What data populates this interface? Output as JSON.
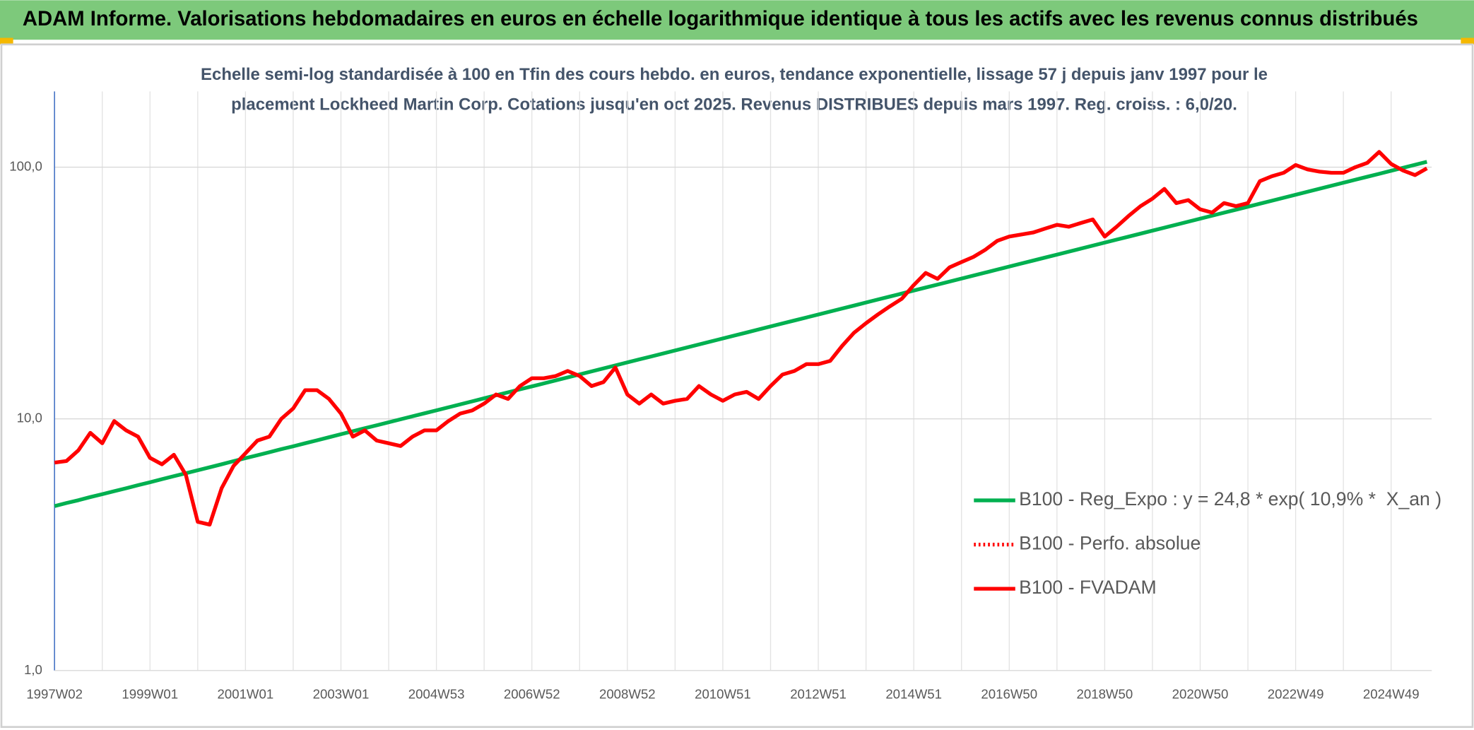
{
  "chart_data": {
    "type": "line",
    "title": "ADAM Informe. Valorisations hebdomadaires en euros en échelle logarithmique identique à tous les actifs avec les revenus connus distribués",
    "subtitle": [
      "Echelle semi-log standardisée à 100 en Tfin des cours hebdo. en euros, tendance exponentielle, lissage 57 j depuis janv 1997 pour le",
      "placement Lockheed Martin Corp. Cotations jusqu'en oct 2025. Revenus DISTRIBUES depuis mars 1997. Reg. croiss. : 6,0/20."
    ],
    "log_scale": true,
    "grid": true,
    "legend_position": "lower right",
    "ylim": [
      1,
      200
    ],
    "yticks": [
      {
        "value": 1,
        "label": "1,0"
      },
      {
        "value": 10,
        "label": "10,0"
      },
      {
        "value": 100,
        "label": "100,0"
      }
    ],
    "categories": [
      "1997W02",
      null,
      null,
      null,
      null,
      null,
      null,
      null,
      "1999W01",
      null,
      null,
      null,
      null,
      null,
      null,
      null,
      "2001W01",
      null,
      null,
      null,
      null,
      null,
      null,
      null,
      "2003W01",
      null,
      null,
      null,
      null,
      null,
      null,
      null,
      "2004W53",
      null,
      null,
      null,
      null,
      null,
      null,
      null,
      "2006W52",
      null,
      null,
      null,
      null,
      null,
      null,
      null,
      "2008W52",
      null,
      null,
      null,
      null,
      null,
      null,
      null,
      "2010W51",
      null,
      null,
      null,
      null,
      null,
      null,
      null,
      "2012W51",
      null,
      null,
      null,
      null,
      null,
      null,
      null,
      "2014W51",
      null,
      null,
      null,
      null,
      null,
      null,
      null,
      "2016W50",
      null,
      null,
      null,
      null,
      null,
      null,
      null,
      "2018W50",
      null,
      null,
      null,
      null,
      null,
      null,
      null,
      "2020W50",
      null,
      null,
      null,
      null,
      null,
      null,
      null,
      "2022W49",
      null,
      null,
      null,
      null,
      null,
      null,
      null,
      "2024W49",
      null,
      null,
      null
    ],
    "series": [
      {
        "name": "B100 - Reg_Expo : y = 24,8 * exp( 10,9% *  X_an )",
        "color": "#00b050",
        "dash": "solid",
        "values": [
          4.5,
          4.63,
          4.75,
          4.89,
          5.02,
          5.16,
          5.3,
          5.45,
          5.6,
          5.76,
          5.92,
          6.08,
          6.25,
          6.42,
          6.6,
          6.79,
          6.98,
          7.17,
          7.37,
          7.58,
          7.78,
          8.0,
          8.22,
          8.45,
          8.69,
          8.93,
          9.18,
          9.43,
          9.69,
          9.96,
          10.24,
          10.52,
          10.81,
          11.11,
          11.42,
          11.74,
          12.07,
          12.41,
          12.75,
          13.1,
          13.46,
          13.83,
          14.22,
          14.61,
          15.02,
          15.44,
          15.87,
          16.31,
          16.76,
          17.23,
          17.7,
          18.19,
          18.7,
          19.22,
          19.75,
          20.3,
          20.87,
          21.45,
          22.04,
          22.66,
          23.29,
          23.94,
          24.6,
          25.28,
          25.98,
          26.7,
          27.44,
          28.2,
          28.99,
          29.8,
          30.62,
          31.47,
          32.35,
          33.25,
          34.17,
          35.12,
          36.1,
          37.1,
          38.13,
          39.19,
          40.28,
          41.4,
          42.55,
          43.73,
          44.94,
          46.19,
          47.47,
          48.79,
          50.15,
          51.54,
          52.97,
          54.44,
          55.95,
          57.51,
          59.1,
          60.74,
          62.43,
          64.17,
          65.95,
          67.77,
          69.66,
          71.6,
          73.58,
          75.62,
          77.73,
          79.89,
          82.11,
          84.38,
          86.73,
          89.14,
          91.61,
          94.15,
          96.78,
          99.47,
          102.23,
          105.07
        ]
      },
      {
        "name": "B100 - Perfo. absolue",
        "color": "#ff0000",
        "dash": "dotted"
      },
      {
        "name": "B100 - FVADAM",
        "color": "#ff0000",
        "dash": "solid",
        "values": [
          6.7,
          6.8,
          7.5,
          8.8,
          8.0,
          9.8,
          9.0,
          8.5,
          7.0,
          6.6,
          7.2,
          6.0,
          3.9,
          3.8,
          5.3,
          6.5,
          7.3,
          8.2,
          8.5,
          10.0,
          11.0,
          13.0,
          13.0,
          12.0,
          10.5,
          8.5,
          9.0,
          8.2,
          8.0,
          7.8,
          8.5,
          9.0,
          9.0,
          9.8,
          10.5,
          10.8,
          11.5,
          12.5,
          12.0,
          13.5,
          14.5,
          14.5,
          14.8,
          15.5,
          14.8,
          13.5,
          14.0,
          16.0,
          12.5,
          11.5,
          12.5,
          11.5,
          11.8,
          12.0,
          13.5,
          12.5,
          11.8,
          12.5,
          12.8,
          12.0,
          13.5,
          15.0,
          15.5,
          16.5,
          16.5,
          17.0,
          19.5,
          22.0,
          24.0,
          26.0,
          28.0,
          30.0,
          34.0,
          38.0,
          36.0,
          40.0,
          42.0,
          44.0,
          47.0,
          51.0,
          53.0,
          54.0,
          55.0,
          57.0,
          59.0,
          58.0,
          60.0,
          62.0,
          53.0,
          58.0,
          64.0,
          70.0,
          75.0,
          82.0,
          72.0,
          74.0,
          68.0,
          66.0,
          72.0,
          70.0,
          72.0,
          88.0,
          92.0,
          95.0,
          102.0,
          98.0,
          96.0,
          95.0,
          95.0,
          100.0,
          104.0,
          115.0,
          103.0,
          97.0,
          93.0,
          99.0
        ]
      }
    ]
  }
}
